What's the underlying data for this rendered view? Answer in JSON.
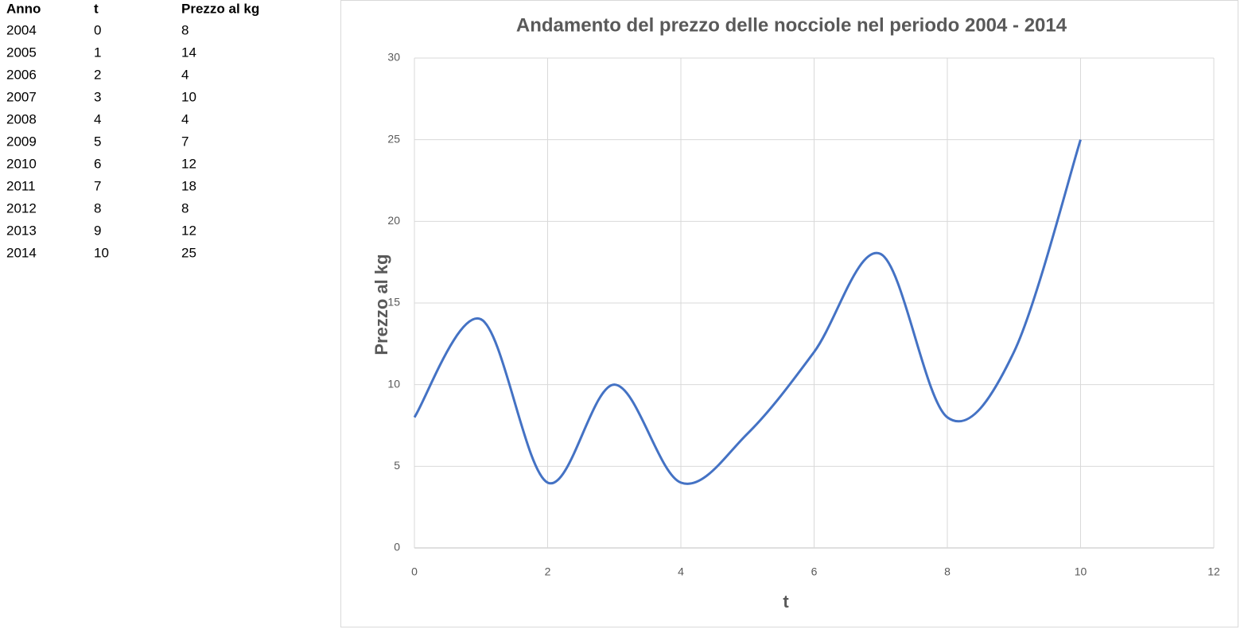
{
  "table": {
    "header": [
      "Anno",
      "t",
      "Prezzo al kg"
    ],
    "rows": [
      [
        "2004",
        "0",
        "8"
      ],
      [
        "2005",
        "1",
        "14"
      ],
      [
        "2006",
        "2",
        "4"
      ],
      [
        "2007",
        "3",
        "10"
      ],
      [
        "2008",
        "4",
        "4"
      ],
      [
        "2009",
        "5",
        "7"
      ],
      [
        "2010",
        "6",
        "12"
      ],
      [
        "2011",
        "7",
        "18"
      ],
      [
        "2012",
        "8",
        "8"
      ],
      [
        "2013",
        "9",
        "12"
      ],
      [
        "2014",
        "10",
        "25"
      ]
    ]
  },
  "chart_data": {
    "type": "line",
    "title": "Andamento del prezzo delle nocciole  nel periodo  2004 - 2014",
    "x_label": "t",
    "y_label": "Prezzo al kg",
    "x": [
      0,
      1,
      2,
      3,
      4,
      5,
      6,
      7,
      8,
      9,
      10
    ],
    "values": [
      8,
      14,
      4,
      10,
      4,
      7,
      12,
      18,
      8,
      12,
      25
    ],
    "color": "#4472c4",
    "smooth": true,
    "grid": true,
    "xlim": [
      0,
      12
    ],
    "xticks": [
      0,
      2,
      4,
      6,
      8,
      10,
      12
    ],
    "ylim": [
      0,
      30
    ],
    "yticks": [
      0,
      5,
      10,
      15,
      20,
      25,
      30
    ]
  }
}
